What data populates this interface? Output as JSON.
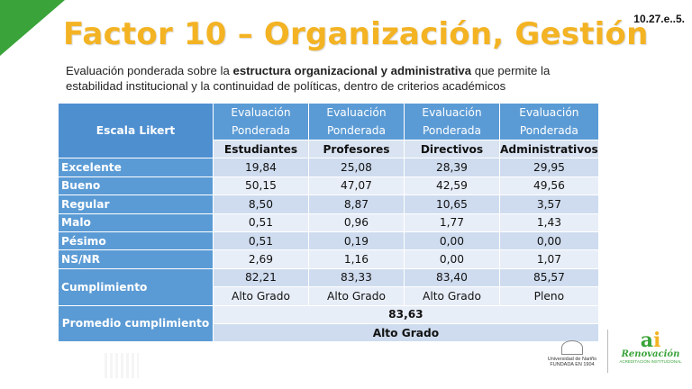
{
  "slide": {
    "ref": "10.27.e..5.",
    "title": "Factor 10 – Organización, Gestión",
    "subtitle_pre": "Evaluación ponderada sobre la ",
    "subtitle_bold": "estructura organizacional y administrativa",
    "subtitle_post": " que permite la estabilidad institucional y la continuidad de políticas, dentro de criterios académicos"
  },
  "table": {
    "scale_header": "Escala Likert",
    "eval_header": "Evaluación Ponderada",
    "groups": [
      "Estudiantes",
      "Profesores",
      "Directivos",
      "Administrativos"
    ],
    "rows": [
      {
        "label": "Excelente",
        "values": [
          "19,84",
          "25,08",
          "28,39",
          "29,95"
        ]
      },
      {
        "label": "Bueno",
        "values": [
          "50,15",
          "47,07",
          "42,59",
          "49,56"
        ]
      },
      {
        "label": "Regular",
        "values": [
          "8,50",
          "8,87",
          "10,65",
          "3,57"
        ]
      },
      {
        "label": "Malo",
        "values": [
          "0,51",
          "0,96",
          "1,77",
          "1,43"
        ]
      },
      {
        "label": "Pésimo",
        "values": [
          "0,51",
          "0,19",
          "0,00",
          "0,00"
        ]
      },
      {
        "label": "NS/NR",
        "values": [
          "2,69",
          "1,16",
          "0,00",
          "1,07"
        ]
      }
    ],
    "cumplimiento": {
      "label": "Cumplimiento",
      "values": [
        "82,21",
        "83,33",
        "83,40",
        "85,57"
      ],
      "grades": [
        "Alto Grado",
        "Alto Grado",
        "Alto Grado",
        "Pleno"
      ]
    },
    "promedio": {
      "label": "Promedio cumplimiento",
      "value": "83,63",
      "grade": "Alto Grado"
    }
  },
  "logos": {
    "university": "Universidad de Nariño",
    "university_sub": "FUNDADA EN 1904",
    "ai_text": "Renovación",
    "ai_sub": "ACREDITACIÓN INSTITUCIONAL"
  },
  "colors": {
    "title": "#f3b323",
    "header_blue": "#5b9bd5",
    "row_dark": "#cfdcef",
    "row_light": "#e8eef8",
    "corner_green": "#3aa33a"
  }
}
